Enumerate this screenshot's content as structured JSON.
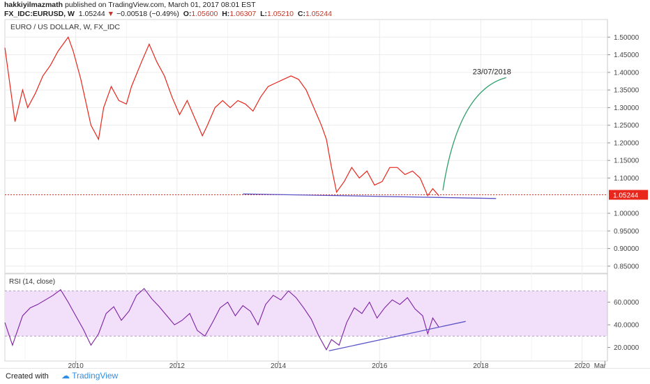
{
  "header": {
    "author": "hakkiyilmazmath",
    "published": "published on TradingView.com, March 01, 2017 08:01 EST",
    "symbol": "FX_IDC:EURUSD, W",
    "price": "1.05244",
    "change_icon": "triangle-down-icon",
    "change": "−0.00518 (−0.49%)",
    "o_label": "O:",
    "o_value": "1.05600",
    "h_label": "H:",
    "h_value": "1.06307",
    "l_label": "L:",
    "l_value": "1.05210",
    "c_label": "C:",
    "c_value": "1.05244"
  },
  "footer": {
    "created_with": "Created with",
    "brand": "TradingView",
    "brand_icon": "tradingview-cloud-icon"
  },
  "colors": {
    "price_line": "#e8261b",
    "rsi_line": "#7b1fa2",
    "rsi_band": "#f2e0fa",
    "trendline": "#5b54c8",
    "arrow": "#2e9e6b",
    "last_price": "#e8261b"
  },
  "chart_data": [
    {
      "type": "line",
      "title": "EURO / US DOLLAR, W, FX_IDC",
      "x_tick_labels": [
        "2010",
        "2012",
        "2014",
        "2016",
        "2018",
        "2020",
        "Mar"
      ],
      "y_tick_labels": [
        "1.50000",
        "1.45000",
        "1.40000",
        "1.35000",
        "1.30000",
        "1.25000",
        "1.20000",
        "1.15000",
        "1.10000",
        "1.05244",
        "1.00000",
        "0.95000",
        "0.90000",
        "0.85000"
      ],
      "ylim": [
        0.83,
        1.55
      ],
      "xlim": [
        2008.6,
        2020.5
      ],
      "grid": true,
      "last_price": 1.05244,
      "series": [
        {
          "x": [
            2008.6,
            2008.8,
            2008.95,
            2009.05,
            2009.2,
            2009.35,
            2009.5,
            2009.65,
            2009.85,
            2009.95,
            2010.1,
            2010.3,
            2010.45,
            2010.55,
            2010.7,
            2010.85,
            2011.0,
            2011.1,
            2011.3,
            2011.45,
            2011.6,
            2011.75,
            2011.9,
            2012.05,
            2012.2,
            2012.35,
            2012.5,
            2012.6,
            2012.75,
            2012.9,
            2013.05,
            2013.2,
            2013.35,
            2013.5,
            2013.65,
            2013.8,
            2013.95,
            2014.1,
            2014.25,
            2014.4,
            2014.55,
            2014.7,
            2014.85,
            2014.95,
            2015.05,
            2015.15,
            2015.3,
            2015.45,
            2015.6,
            2015.75,
            2015.9,
            2016.05,
            2016.2,
            2016.35,
            2016.5,
            2016.65,
            2016.8,
            2016.95,
            2017.05,
            2017.17
          ],
          "y": [
            1.47,
            1.26,
            1.35,
            1.3,
            1.34,
            1.39,
            1.42,
            1.46,
            1.5,
            1.46,
            1.38,
            1.25,
            1.21,
            1.3,
            1.36,
            1.32,
            1.31,
            1.36,
            1.43,
            1.48,
            1.43,
            1.39,
            1.33,
            1.28,
            1.32,
            1.27,
            1.22,
            1.25,
            1.3,
            1.32,
            1.3,
            1.32,
            1.31,
            1.29,
            1.33,
            1.36,
            1.37,
            1.38,
            1.39,
            1.38,
            1.35,
            1.3,
            1.25,
            1.21,
            1.13,
            1.06,
            1.09,
            1.13,
            1.1,
            1.12,
            1.08,
            1.09,
            1.13,
            1.13,
            1.11,
            1.12,
            1.1,
            1.05,
            1.07,
            1.05
          ]
        }
      ],
      "annotations": [
        {
          "text": "23/07/2018",
          "kind": "curved-arrow",
          "from": [
            2017.25,
            1.065
          ],
          "to": [
            2018.5,
            1.385
          ]
        },
        {
          "kind": "trendline",
          "from": [
            2013.3,
            1.055
          ],
          "to": [
            2018.3,
            1.042
          ]
        }
      ]
    },
    {
      "type": "line",
      "title": "RSI (14, close)",
      "y_tick_labels": [
        "60.0000",
        "40.0000",
        "20.0000"
      ],
      "ylim": [
        8,
        85
      ],
      "band": [
        30,
        70
      ],
      "series": [
        {
          "x": [
            2008.6,
            2008.75,
            2008.95,
            2009.1,
            2009.25,
            2009.4,
            2009.55,
            2009.7,
            2009.85,
            2010.0,
            2010.15,
            2010.3,
            2010.45,
            2010.6,
            2010.75,
            2010.9,
            2011.05,
            2011.2,
            2011.35,
            2011.5,
            2011.65,
            2011.8,
            2011.95,
            2012.1,
            2012.25,
            2012.4,
            2012.55,
            2012.7,
            2012.85,
            2013.0,
            2013.15,
            2013.3,
            2013.45,
            2013.6,
            2013.75,
            2013.9,
            2014.05,
            2014.2,
            2014.35,
            2014.5,
            2014.65,
            2014.8,
            2014.95,
            2015.05,
            2015.2,
            2015.35,
            2015.5,
            2015.65,
            2015.8,
            2015.95,
            2016.1,
            2016.25,
            2016.4,
            2016.55,
            2016.7,
            2016.85,
            2016.95,
            2017.05,
            2017.17
          ],
          "y": [
            42,
            22,
            48,
            55,
            58,
            62,
            66,
            71,
            60,
            48,
            36,
            22,
            32,
            50,
            56,
            44,
            52,
            66,
            72,
            63,
            56,
            48,
            40,
            44,
            50,
            35,
            30,
            42,
            55,
            60,
            48,
            57,
            52,
            40,
            58,
            66,
            62,
            70,
            64,
            55,
            45,
            30,
            18,
            27,
            22,
            42,
            55,
            50,
            60,
            46,
            55,
            62,
            58,
            64,
            54,
            48,
            32,
            46,
            38
          ]
        }
      ],
      "annotations": [
        {
          "kind": "trendline",
          "from": [
            2015.0,
            17
          ],
          "to": [
            2017.7,
            43
          ]
        }
      ]
    }
  ]
}
